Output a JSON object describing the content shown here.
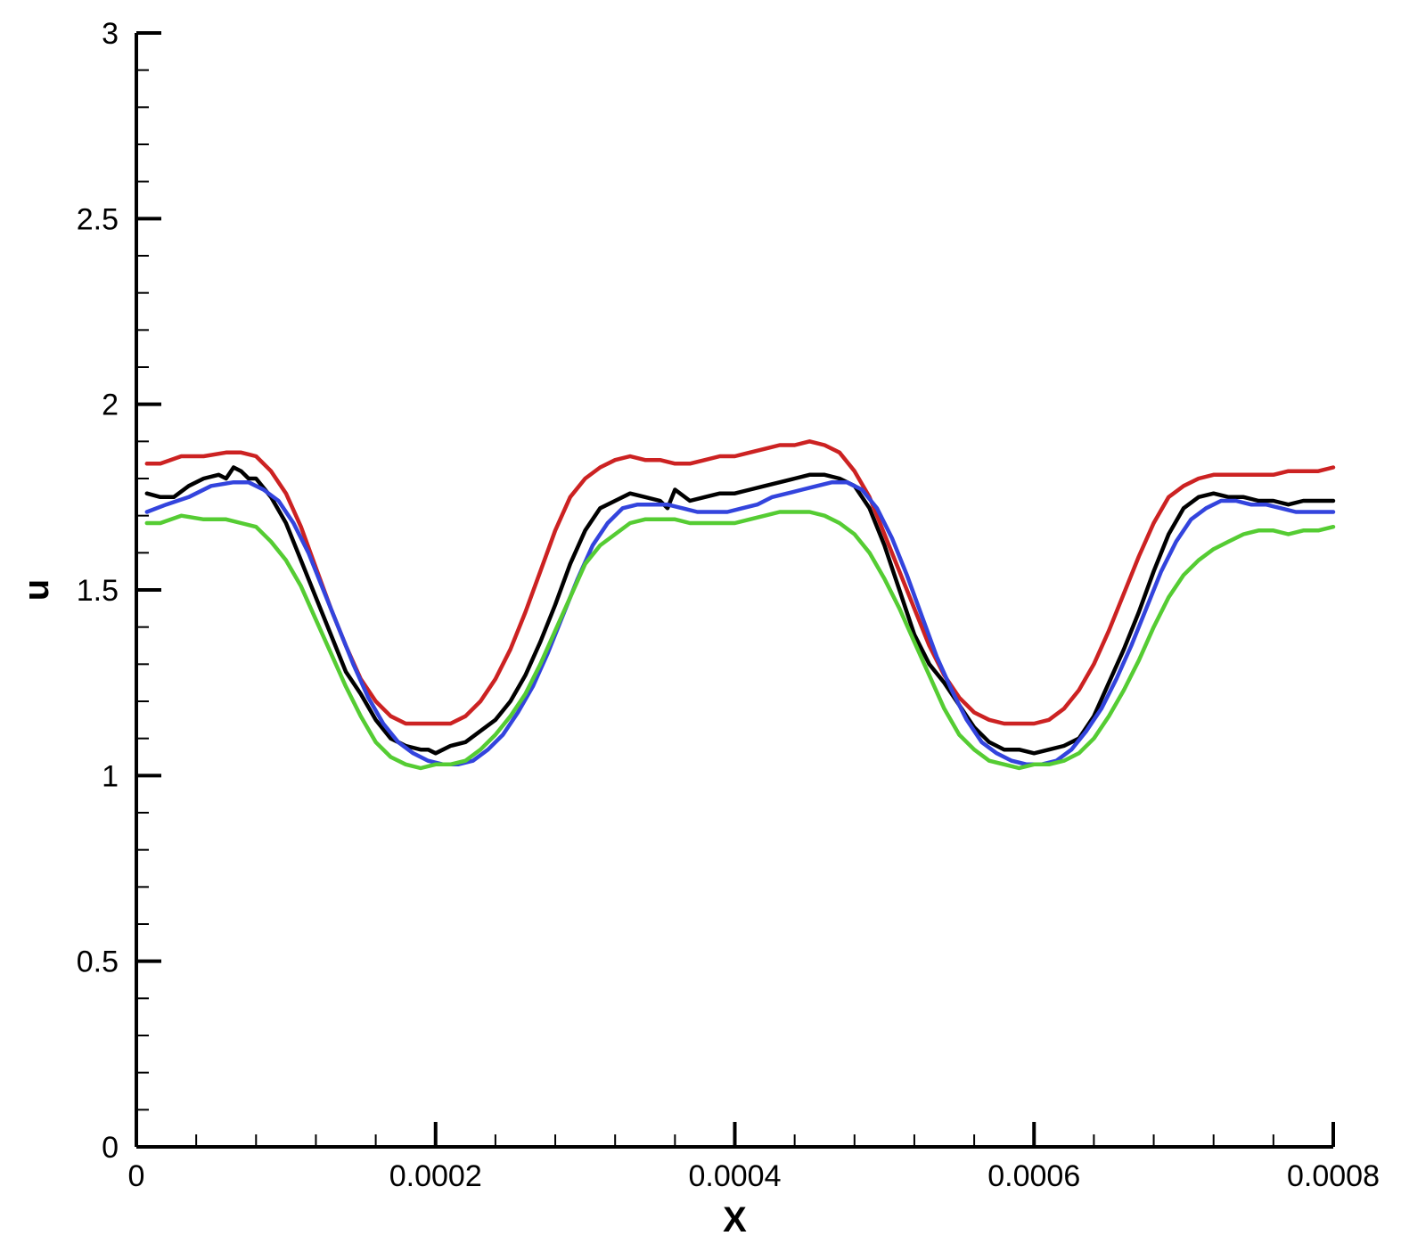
{
  "chart_data": {
    "type": "line",
    "xlabel": "X",
    "ylabel": "u",
    "xlim": [
      0,
      0.0008
    ],
    "ylim": [
      0,
      3
    ],
    "x_ticks": [
      0,
      0.0002,
      0.0004,
      0.0006,
      0.0008
    ],
    "x_tick_labels": [
      "0",
      "0.0002",
      "0.0004",
      "0.0006",
      "0.0008"
    ],
    "y_ticks": [
      0,
      0.5,
      1,
      1.5,
      2,
      2.5,
      3
    ],
    "y_tick_labels": [
      "0",
      "0.5",
      "1",
      "1.5",
      "2",
      "2.5",
      "3"
    ],
    "grid": false,
    "series": [
      {
        "color": "#cc2222",
        "x": [
          7e-06,
          1.6e-05,
          3e-05,
          4.5e-05,
          6e-05,
          7e-05,
          8e-05,
          9e-05,
          0.0001,
          0.00011,
          0.00012,
          0.00013,
          0.00014,
          0.00015,
          0.00016,
          0.00017,
          0.00018,
          0.00019,
          0.0002,
          0.00021,
          0.00022,
          0.00023,
          0.00024,
          0.00025,
          0.00026,
          0.00027,
          0.00028,
          0.00029,
          0.0003,
          0.00031,
          0.00032,
          0.00033,
          0.00034,
          0.00035,
          0.00036,
          0.00037,
          0.00038,
          0.00039,
          0.0004,
          0.00041,
          0.00042,
          0.00043,
          0.00044,
          0.00045,
          0.00046,
          0.00047,
          0.00048,
          0.00049,
          0.0005,
          0.00051,
          0.00052,
          0.00053,
          0.00054,
          0.00055,
          0.00056,
          0.00057,
          0.00058,
          0.00059,
          0.0006,
          0.00061,
          0.00062,
          0.00063,
          0.00064,
          0.00065,
          0.00066,
          0.00067,
          0.00068,
          0.00069,
          0.0007,
          0.00071,
          0.00072,
          0.00073,
          0.00074,
          0.00075,
          0.00076,
          0.00077,
          0.00078,
          0.00079,
          0.0008
        ],
        "y": [
          1.84,
          1.84,
          1.86,
          1.86,
          1.87,
          1.87,
          1.86,
          1.82,
          1.76,
          1.67,
          1.56,
          1.45,
          1.35,
          1.26,
          1.2,
          1.16,
          1.14,
          1.14,
          1.14,
          1.14,
          1.16,
          1.2,
          1.26,
          1.34,
          1.44,
          1.55,
          1.66,
          1.75,
          1.8,
          1.83,
          1.85,
          1.86,
          1.85,
          1.85,
          1.84,
          1.84,
          1.85,
          1.86,
          1.86,
          1.87,
          1.88,
          1.89,
          1.89,
          1.9,
          1.89,
          1.87,
          1.82,
          1.75,
          1.65,
          1.55,
          1.45,
          1.35,
          1.27,
          1.21,
          1.17,
          1.15,
          1.14,
          1.14,
          1.14,
          1.15,
          1.18,
          1.23,
          1.3,
          1.39,
          1.49,
          1.59,
          1.68,
          1.75,
          1.78,
          1.8,
          1.81,
          1.81,
          1.81,
          1.81,
          1.81,
          1.82,
          1.82,
          1.82,
          1.83
        ]
      },
      {
        "color": "#000000",
        "x": [
          7e-06,
          1.6e-05,
          2.5e-05,
          3.5e-05,
          4.5e-05,
          5.5e-05,
          6e-05,
          6.5e-05,
          7e-05,
          7.5e-05,
          8e-05,
          9e-05,
          0.0001,
          0.00011,
          0.00012,
          0.00013,
          0.00014,
          0.00015,
          0.00016,
          0.00017,
          0.000175,
          0.00018,
          0.00019,
          0.000195,
          0.0002,
          0.000205,
          0.00021,
          0.00022,
          0.00023,
          0.00024,
          0.00025,
          0.00026,
          0.00027,
          0.00028,
          0.00029,
          0.0003,
          0.00031,
          0.00032,
          0.00033,
          0.00034,
          0.00035,
          0.000355,
          0.00036,
          0.00037,
          0.00038,
          0.00039,
          0.0004,
          0.00041,
          0.00042,
          0.00043,
          0.00044,
          0.00045,
          0.00046,
          0.00047,
          0.00048,
          0.00049,
          0.0005,
          0.00051,
          0.00052,
          0.00053,
          0.00054,
          0.00055,
          0.00056,
          0.00057,
          0.00058,
          0.00059,
          0.0006,
          0.00061,
          0.00062,
          0.00063,
          0.00064,
          0.00065,
          0.00066,
          0.00067,
          0.00068,
          0.00069,
          0.0007,
          0.00071,
          0.00072,
          0.00073,
          0.00074,
          0.00075,
          0.00076,
          0.00077,
          0.00078,
          0.00079,
          0.0008
        ],
        "y": [
          1.76,
          1.75,
          1.75,
          1.78,
          1.8,
          1.81,
          1.8,
          1.83,
          1.82,
          1.8,
          1.8,
          1.75,
          1.68,
          1.58,
          1.48,
          1.38,
          1.28,
          1.22,
          1.15,
          1.1,
          1.09,
          1.08,
          1.07,
          1.07,
          1.06,
          1.07,
          1.08,
          1.09,
          1.12,
          1.15,
          1.2,
          1.27,
          1.36,
          1.46,
          1.57,
          1.66,
          1.72,
          1.74,
          1.76,
          1.75,
          1.74,
          1.72,
          1.77,
          1.74,
          1.75,
          1.76,
          1.76,
          1.77,
          1.78,
          1.79,
          1.8,
          1.81,
          1.81,
          1.8,
          1.78,
          1.72,
          1.62,
          1.5,
          1.38,
          1.3,
          1.25,
          1.19,
          1.13,
          1.09,
          1.07,
          1.07,
          1.06,
          1.07,
          1.08,
          1.1,
          1.16,
          1.25,
          1.34,
          1.44,
          1.55,
          1.65,
          1.72,
          1.75,
          1.76,
          1.75,
          1.75,
          1.74,
          1.74,
          1.73,
          1.74,
          1.74,
          1.74
        ]
      },
      {
        "color": "#3344dd",
        "x": [
          7e-06,
          2e-05,
          3.5e-05,
          5e-05,
          6.5e-05,
          7.5e-05,
          8.5e-05,
          9.5e-05,
          0.000105,
          0.000115,
          0.000125,
          0.000135,
          0.000145,
          0.000155,
          0.000165,
          0.000175,
          0.000185,
          0.000195,
          0.000205,
          0.000215,
          0.000225,
          0.000235,
          0.000245,
          0.000255,
          0.000265,
          0.000275,
          0.000285,
          0.000295,
          0.000305,
          0.000315,
          0.000325,
          0.000335,
          0.000345,
          0.000355,
          0.000365,
          0.000375,
          0.000385,
          0.000395,
          0.000405,
          0.000415,
          0.000425,
          0.000435,
          0.000445,
          0.000455,
          0.000465,
          0.000475,
          0.000485,
          0.000495,
          0.000505,
          0.000515,
          0.000525,
          0.000535,
          0.000545,
          0.000555,
          0.000565,
          0.000575,
          0.000585,
          0.000595,
          0.000605,
          0.000615,
          0.000625,
          0.000635,
          0.000645,
          0.000655,
          0.000665,
          0.000675,
          0.000685,
          0.000695,
          0.000705,
          0.000715,
          0.000725,
          0.000735,
          0.000745,
          0.000755,
          0.000765,
          0.000775,
          0.000785,
          0.0008
        ],
        "y": [
          1.71,
          1.73,
          1.75,
          1.78,
          1.79,
          1.79,
          1.77,
          1.74,
          1.68,
          1.6,
          1.5,
          1.4,
          1.3,
          1.21,
          1.14,
          1.09,
          1.06,
          1.04,
          1.03,
          1.03,
          1.04,
          1.07,
          1.11,
          1.17,
          1.24,
          1.33,
          1.43,
          1.53,
          1.62,
          1.68,
          1.72,
          1.73,
          1.73,
          1.73,
          1.72,
          1.71,
          1.71,
          1.71,
          1.72,
          1.73,
          1.75,
          1.76,
          1.77,
          1.78,
          1.79,
          1.79,
          1.77,
          1.72,
          1.64,
          1.54,
          1.43,
          1.32,
          1.23,
          1.15,
          1.09,
          1.06,
          1.04,
          1.03,
          1.03,
          1.04,
          1.07,
          1.12,
          1.18,
          1.26,
          1.35,
          1.45,
          1.55,
          1.63,
          1.69,
          1.72,
          1.74,
          1.74,
          1.73,
          1.73,
          1.72,
          1.71,
          1.71,
          1.71
        ]
      },
      {
        "color": "#55cc33",
        "x": [
          7e-06,
          1.6e-05,
          3e-05,
          4.5e-05,
          6e-05,
          7e-05,
          8e-05,
          9e-05,
          0.0001,
          0.00011,
          0.00012,
          0.00013,
          0.00014,
          0.00015,
          0.00016,
          0.00017,
          0.00018,
          0.00019,
          0.0002,
          0.00021,
          0.00022,
          0.00023,
          0.00024,
          0.00025,
          0.00026,
          0.00027,
          0.00028,
          0.00029,
          0.0003,
          0.00031,
          0.00032,
          0.00033,
          0.00034,
          0.00035,
          0.00036,
          0.00037,
          0.00038,
          0.00039,
          0.0004,
          0.00041,
          0.00042,
          0.00043,
          0.00044,
          0.00045,
          0.00046,
          0.00047,
          0.00048,
          0.00049,
          0.0005,
          0.00051,
          0.00052,
          0.00053,
          0.00054,
          0.00055,
          0.00056,
          0.00057,
          0.00058,
          0.00059,
          0.0006,
          0.00061,
          0.00062,
          0.00063,
          0.00064,
          0.00065,
          0.00066,
          0.00067,
          0.00068,
          0.00069,
          0.0007,
          0.00071,
          0.00072,
          0.00073,
          0.00074,
          0.00075,
          0.00076,
          0.00077,
          0.00078,
          0.00079,
          0.0008
        ],
        "y": [
          1.68,
          1.68,
          1.7,
          1.69,
          1.69,
          1.68,
          1.67,
          1.63,
          1.58,
          1.51,
          1.42,
          1.33,
          1.24,
          1.16,
          1.09,
          1.05,
          1.03,
          1.02,
          1.03,
          1.03,
          1.04,
          1.07,
          1.11,
          1.16,
          1.22,
          1.3,
          1.39,
          1.48,
          1.57,
          1.62,
          1.65,
          1.68,
          1.69,
          1.69,
          1.69,
          1.68,
          1.68,
          1.68,
          1.68,
          1.69,
          1.7,
          1.71,
          1.71,
          1.71,
          1.7,
          1.68,
          1.65,
          1.6,
          1.53,
          1.45,
          1.36,
          1.27,
          1.18,
          1.11,
          1.07,
          1.04,
          1.03,
          1.02,
          1.03,
          1.03,
          1.04,
          1.06,
          1.1,
          1.16,
          1.23,
          1.31,
          1.4,
          1.48,
          1.54,
          1.58,
          1.61,
          1.63,
          1.65,
          1.66,
          1.66,
          1.65,
          1.66,
          1.66,
          1.67
        ]
      }
    ]
  }
}
